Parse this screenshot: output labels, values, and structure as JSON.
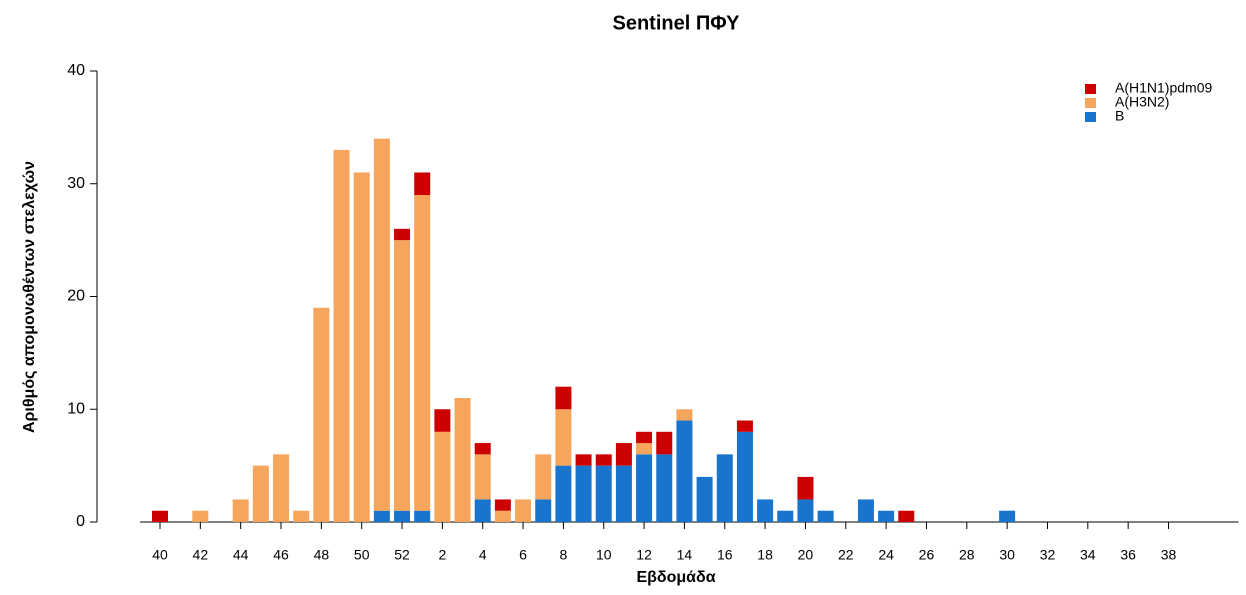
{
  "chart_data": {
    "type": "stacked_bar",
    "title": "Sentinel ΠΦΥ",
    "x_label": "Εβδομάδα",
    "y_label": "Αριθμός απομονωθέντων στελεχών",
    "categories": [
      "40",
      null,
      "42",
      null,
      "44",
      null,
      "46",
      null,
      "48",
      null,
      "50",
      null,
      "52",
      null,
      "2",
      null,
      "4",
      null,
      "6",
      null,
      "8",
      null,
      "10",
      null,
      "12",
      null,
      "14",
      null,
      "16",
      null,
      "18",
      null,
      "20",
      null,
      "22",
      null,
      "24",
      null,
      "26",
      null,
      "28",
      null,
      "30",
      null,
      "32",
      null,
      "34",
      null,
      "36",
      null,
      "38"
    ],
    "series": [
      {
        "name": "A(H1N1)pdm09",
        "color": "#cc0000",
        "values": [
          1,
          0,
          0,
          0,
          0,
          0,
          0,
          0,
          0,
          0,
          0,
          0,
          1,
          2,
          2,
          0,
          1,
          1,
          0,
          0,
          2,
          1,
          1,
          2,
          1,
          2,
          0,
          0,
          0,
          1,
          0,
          0,
          2,
          0,
          0,
          0,
          0,
          1,
          0,
          0,
          0,
          0,
          0,
          0,
          0,
          0,
          0,
          0,
          0,
          0,
          0
        ]
      },
      {
        "name": "A(H3N2)",
        "color": "#f5a55c",
        "values": [
          0,
          0,
          1,
          0,
          2,
          5,
          6,
          1,
          19,
          33,
          31,
          33,
          24,
          28,
          8,
          11,
          4,
          1,
          2,
          4,
          5,
          0,
          0,
          0,
          1,
          0,
          1,
          0,
          0,
          0,
          0,
          0,
          0,
          0,
          0,
          0,
          0,
          0,
          0,
          0,
          0,
          0,
          0,
          0,
          0,
          0,
          0,
          0,
          0,
          0,
          0
        ]
      },
      {
        "name": "B",
        "color": "#1874cd",
        "values": [
          0,
          0,
          0,
          0,
          0,
          0,
          0,
          0,
          0,
          0,
          0,
          1,
          1,
          1,
          0,
          0,
          2,
          0,
          0,
          2,
          5,
          5,
          5,
          5,
          6,
          6,
          9,
          4,
          6,
          8,
          2,
          1,
          2,
          1,
          0,
          2,
          1,
          0,
          0,
          0,
          0,
          0,
          1,
          0,
          0,
          0,
          0,
          0,
          0,
          0,
          0
        ]
      }
    ],
    "ylim": [
      0,
      40
    ],
    "yticks": [
      0,
      10,
      20,
      30,
      40
    ],
    "legend": "top-right"
  }
}
